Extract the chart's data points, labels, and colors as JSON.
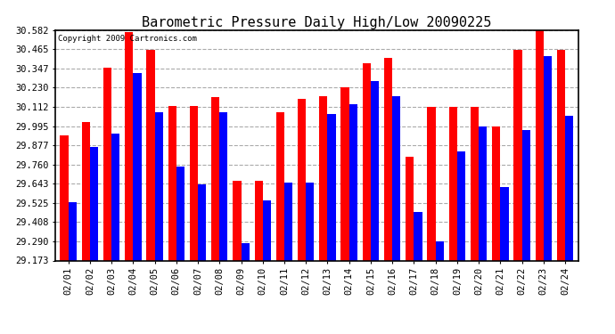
{
  "title": "Barometric Pressure Daily High/Low 20090225",
  "copyright": "Copyright 2009 Cartronics.com",
  "dates": [
    "02/01",
    "02/02",
    "02/03",
    "02/04",
    "02/05",
    "02/06",
    "02/07",
    "02/08",
    "02/09",
    "02/10",
    "02/11",
    "02/12",
    "02/13",
    "02/14",
    "02/15",
    "02/16",
    "02/17",
    "02/18",
    "02/19",
    "02/20",
    "02/21",
    "02/22",
    "02/23",
    "02/24"
  ],
  "highs": [
    29.94,
    30.02,
    30.35,
    30.57,
    30.46,
    30.12,
    30.12,
    30.17,
    29.66,
    29.66,
    30.08,
    30.16,
    30.18,
    30.23,
    30.38,
    30.41,
    29.81,
    30.11,
    30.11,
    30.11,
    29.99,
    30.46,
    30.58,
    30.46
  ],
  "lows": [
    29.53,
    29.87,
    29.95,
    30.32,
    30.08,
    29.75,
    29.64,
    30.08,
    29.28,
    29.54,
    29.65,
    29.65,
    30.07,
    30.13,
    30.27,
    30.18,
    29.47,
    29.29,
    29.84,
    29.99,
    29.62,
    29.97,
    30.42,
    30.06
  ],
  "high_color": "#ff0000",
  "low_color": "#0000ff",
  "background_color": "#ffffff",
  "grid_color": "#aaaaaa",
  "yticks": [
    29.173,
    29.29,
    29.408,
    29.525,
    29.643,
    29.76,
    29.877,
    29.995,
    30.112,
    30.23,
    30.347,
    30.465,
    30.582
  ],
  "ymin": 29.173,
  "ymax": 30.582,
  "title_fontsize": 11,
  "tick_fontsize": 7.5,
  "copyright_fontsize": 6.5,
  "bar_width": 0.38
}
